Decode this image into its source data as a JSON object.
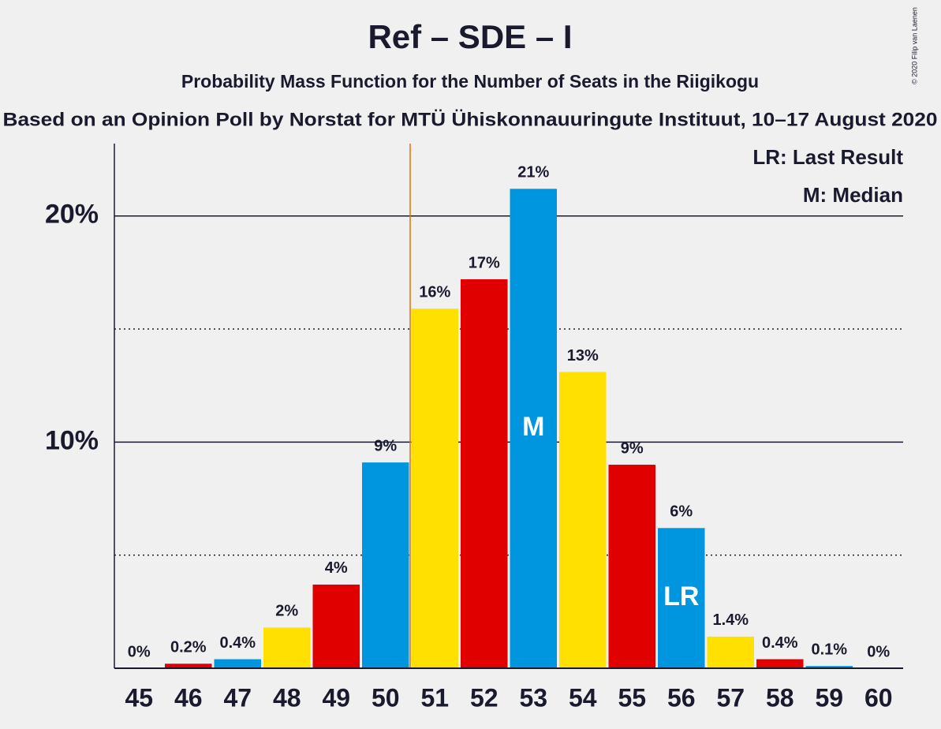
{
  "chart_data": {
    "type": "bar",
    "title": "Ref – SDE – I",
    "subtitle": "Probability Mass Function for the Number of Seats in the Riigikogu",
    "source": "Based on an Opinion Poll by Norstat for MTÜ Ühiskonnauuringute Instituut, 10–17 August 2020",
    "copyright": "© 2020 Filip van Laenen",
    "x": [
      45,
      46,
      47,
      48,
      49,
      50,
      51,
      52,
      53,
      54,
      55,
      56,
      57,
      58,
      59,
      60
    ],
    "xlim": [
      44.5,
      60.5
    ],
    "values": [
      0,
      0.2,
      0.4,
      1.8,
      3.7,
      9.1,
      15.9,
      17.2,
      21.2,
      13.1,
      9.0,
      6.2,
      1.4,
      0.4,
      0.1,
      0
    ],
    "value_labels": [
      "0%",
      "0.2%",
      "0.4%",
      "2%",
      "4%",
      "9%",
      "16%",
      "17%",
      "21%",
      "13%",
      "9%",
      "6%",
      "1.4%",
      "0.4%",
      "0.1%",
      "0%"
    ],
    "colors": [
      "#FFE000",
      "#E10000",
      "#0096DF",
      "#FFE000",
      "#E10000",
      "#0096DF",
      "#FFE000",
      "#E10000",
      "#0096DF",
      "#FFE000",
      "#E10000",
      "#0096DF",
      "#FFE000",
      "#E10000",
      "#0096DF",
      "#FFE000"
    ],
    "ylim": [
      0,
      23.2
    ],
    "yticks": [
      {
        "value": 10,
        "label": "10%"
      },
      {
        "value": 20,
        "label": "20%"
      }
    ],
    "minor_yticks": [
      5,
      15
    ],
    "vline": 50.5,
    "vline_color": "#E07000",
    "markers": [
      {
        "x": 53,
        "label": "M"
      },
      {
        "x": 56,
        "label": "LR"
      }
    ],
    "legend": [
      "LR: Last Result",
      "M: Median"
    ]
  }
}
